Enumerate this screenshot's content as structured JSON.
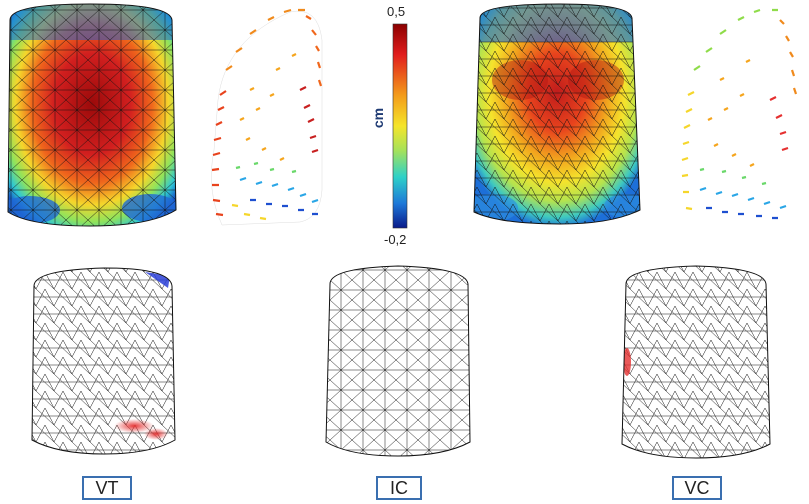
{
  "colorbar": {
    "max_label": "0,5",
    "min_label": "-0,2",
    "unit": "cm",
    "colors": [
      "#8b0000",
      "#e11d1d",
      "#f39c1b",
      "#f5e52a",
      "#a6e25a",
      "#2ed1c8",
      "#1e78d8",
      "#0a1a8a"
    ]
  },
  "panels": {
    "bottom_labels": [
      "VT",
      "IC",
      "VC"
    ]
  },
  "colors": {
    "mesh": "#111111",
    "label_border": "#3a6fb0",
    "highlight_red": "#e53030",
    "highlight_blue": "#2a40d8"
  }
}
